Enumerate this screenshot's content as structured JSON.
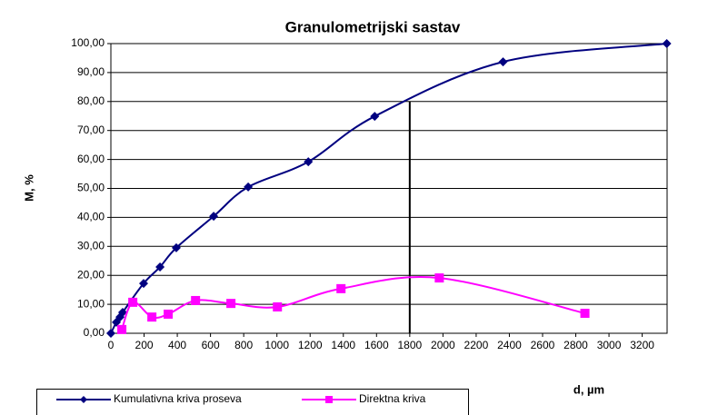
{
  "chart_data": {
    "type": "line",
    "title": "Granulometrijski sastav",
    "x_label": "d, µm",
    "y_label": "M, %",
    "xlim": [
      0,
      3350
    ],
    "ylim": [
      0,
      100
    ],
    "xticks": [
      0,
      200,
      400,
      600,
      800,
      1000,
      1200,
      1400,
      1600,
      1800,
      2000,
      2200,
      2400,
      2600,
      2800,
      3000,
      3200
    ],
    "yticks": [
      {
        "value": 0,
        "label": "0,00"
      },
      {
        "value": 10,
        "label": "10,00"
      },
      {
        "value": 20,
        "label": "20,00"
      },
      {
        "value": 30,
        "label": "30,00"
      },
      {
        "value": 40,
        "label": "40,00"
      },
      {
        "value": 50,
        "label": "50,00"
      },
      {
        "value": 60,
        "label": "60,00"
      },
      {
        "value": 70,
        "label": "70,00"
      },
      {
        "value": 80,
        "label": "80,00"
      },
      {
        "value": 90,
        "label": "90,00"
      },
      {
        "value": 100,
        "label": "100,00"
      }
    ],
    "grid": true,
    "legend": "bottom",
    "reference_line": {
      "x": 1800,
      "y": 80,
      "color": "#000000"
    },
    "series": [
      {
        "name": "Kumulativna kriva proseva",
        "color": "#000080",
        "marker": "diamond",
        "x": [
          0,
          33,
          55,
          71,
          197,
          296,
          394,
          619,
          827,
          1189,
          1589,
          2362,
          3348
        ],
        "values": [
          0,
          3.8,
          5.6,
          7.2,
          17.2,
          22.9,
          29.5,
          40.4,
          50.5,
          59.2,
          74.9,
          93.7,
          100
        ]
      },
      {
        "name": "Direktna kriva",
        "color": "#ff00ff",
        "marker": "square",
        "x": [
          66,
          132,
          247,
          345,
          510,
          723,
          1003,
          1386,
          1978,
          2855
        ],
        "values": [
          1.3,
          10.7,
          5.6,
          6.6,
          11.3,
          10.3,
          9.1,
          15.4,
          19.1,
          6.9
        ]
      }
    ]
  }
}
